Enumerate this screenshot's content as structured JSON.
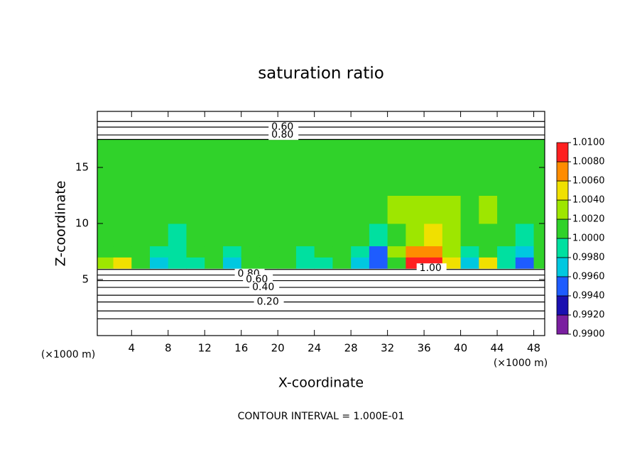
{
  "chart_data": {
    "type": "contour",
    "title": "saturation ratio",
    "x_label": "X-coordinate",
    "y_label": "Z-coordinate",
    "x_unit": "(×1000 m)",
    "y_unit": "(×1000 m)",
    "footer": "CONTOUR INTERVAL = 1.000E-01",
    "xlim": [
      0.25,
      49.2
    ],
    "ylim": [
      0,
      20
    ],
    "xticks": [
      4,
      8,
      12,
      16,
      20,
      24,
      28,
      32,
      36,
      40,
      44,
      48
    ],
    "yticks": [
      5,
      10,
      15
    ],
    "xbins": [
      0,
      2,
      4,
      6,
      8,
      10,
      12,
      14,
      16,
      18,
      20,
      22,
      24,
      26,
      28,
      30,
      32,
      34,
      36,
      38,
      40,
      42,
      44,
      46,
      48,
      50
    ],
    "zbins": [
      6,
      7,
      8,
      10,
      12.5,
      15,
      17.5
    ],
    "field": [
      [
        1.003,
        1.004,
        1.0,
        0.996,
        0.998,
        0.999,
        1.0,
        0.997,
        1.0,
        1.001,
        1.0,
        0.998,
        0.999,
        1.0,
        0.997,
        0.994,
        1.001,
        1.008,
        1.009,
        1.004,
        0.997,
        1.005,
        0.998,
        0.995,
        1.0
      ],
      [
        1.001,
        1.001,
        1.0,
        0.999,
        0.998,
        1.0,
        1.001,
        0.999,
        1.001,
        1.001,
        1.001,
        0.999,
        1.0,
        1.001,
        0.998,
        0.995,
        1.002,
        1.006,
        1.007,
        1.003,
        0.999,
        1.001,
        0.999,
        0.997,
        1.0
      ],
      [
        1.001,
        1.001,
        1.001,
        1.001,
        0.999,
        1.0,
        1.001,
        1.001,
        1.001,
        1.001,
        1.001,
        1.001,
        1.001,
        1.001,
        1.0,
        0.999,
        1.001,
        1.003,
        1.004,
        1.002,
        1.001,
        1.001,
        1.0,
        0.999,
        1.001
      ],
      [
        1.0,
        1.001,
        1.001,
        1.001,
        1.001,
        1.001,
        1.001,
        1.001,
        1.001,
        1.001,
        1.001,
        1.001,
        1.001,
        1.001,
        1.001,
        1.001,
        1.002,
        1.002,
        1.002,
        1.002,
        1.001,
        1.002,
        1.001,
        1.001,
        1.001
      ],
      [
        1.001,
        1.001,
        1.001,
        1.001,
        1.001,
        1.001,
        1.0,
        1.001,
        1.001,
        1.001,
        1.0,
        1.001,
        1.001,
        1.001,
        1.001,
        1.001,
        1.001,
        1.001,
        1.001,
        1.001,
        1.001,
        1.001,
        1.001,
        1.001,
        1.001
      ],
      [
        1.001,
        1.001,
        1.001,
        1.001,
        1.001,
        1.001,
        1.001,
        1.001,
        1.001,
        1.001,
        1.001,
        1.001,
        1.001,
        1.001,
        1.001,
        1.001,
        1.001,
        1.001,
        1.001,
        1.001,
        1.001,
        1.001,
        1.001,
        1.001,
        1.001
      ]
    ],
    "colorbar": {
      "ticks": [
        {
          "value": 0.99,
          "label": "0.9900"
        },
        {
          "value": 0.992,
          "label": "0.9920"
        },
        {
          "value": 0.994,
          "label": "0.9940"
        },
        {
          "value": 0.996,
          "label": "0.9960"
        },
        {
          "value": 0.998,
          "label": "0.9980"
        },
        {
          "value": 1.0,
          "label": "1.0000"
        },
        {
          "value": 1.002,
          "label": "1.0020"
        },
        {
          "value": 1.004,
          "label": "1.0040"
        },
        {
          "value": 1.006,
          "label": "1.0060"
        },
        {
          "value": 1.008,
          "label": "1.0080"
        },
        {
          "value": 1.01,
          "label": "1.0100"
        }
      ],
      "colors": [
        "#7a1fa0",
        "#1a10b0",
        "#1e5cff",
        "#00c8e0",
        "#00e0a0",
        "#30d22a",
        "#9ee600",
        "#f0e000",
        "#ff8c00",
        "#ff2020"
      ]
    },
    "contour_lines": [
      1.5,
      2.2,
      3.0,
      3.6,
      4.3,
      4.9,
      5.4,
      5.9,
      17.5,
      17.9,
      18.6,
      19.1
    ],
    "contour_labels": [
      {
        "text": "0.60",
        "x": 19.3,
        "z": 18.6
      },
      {
        "text": "0.80",
        "x": 19.3,
        "z": 17.9
      },
      {
        "text": "0.80",
        "x": 15.6,
        "z": 5.5
      },
      {
        "text": "0.60",
        "x": 16.5,
        "z": 5.0
      },
      {
        "text": "0.40",
        "x": 17.2,
        "z": 4.3
      },
      {
        "text": "0.20",
        "x": 17.7,
        "z": 3.0
      },
      {
        "text": "1.00",
        "x": 35.5,
        "z": 6.0
      }
    ]
  }
}
